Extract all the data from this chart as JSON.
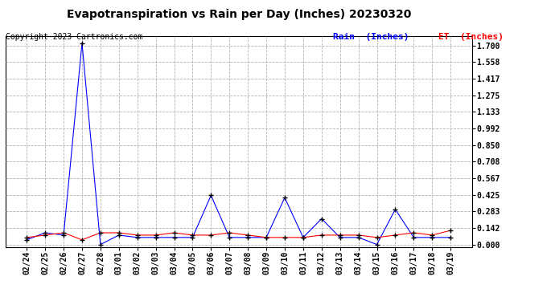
{
  "title": "Evapotranspiration vs Rain per Day (Inches) 20230320",
  "copyright": "Copyright 2023 Cartronics.com",
  "legend_rain": "Rain  (Inches)",
  "legend_et": "ET  (Inches)",
  "x_labels": [
    "02/24",
    "02/25",
    "02/26",
    "02/27",
    "02/28",
    "03/01",
    "03/02",
    "03/03",
    "03/04",
    "03/05",
    "03/06",
    "03/07",
    "03/08",
    "03/09",
    "03/10",
    "03/11",
    "03/12",
    "03/13",
    "03/14",
    "03/15",
    "03/16",
    "03/17",
    "03/18",
    "03/19"
  ],
  "rain_values": [
    0.04,
    0.1,
    0.08,
    1.72,
    0.0,
    0.08,
    0.06,
    0.06,
    0.06,
    0.06,
    0.42,
    0.06,
    0.06,
    0.06,
    0.4,
    0.06,
    0.22,
    0.06,
    0.06,
    0.0,
    0.3,
    0.06,
    0.06,
    0.06
  ],
  "et_values": [
    0.06,
    0.08,
    0.1,
    0.04,
    0.1,
    0.1,
    0.08,
    0.08,
    0.1,
    0.08,
    0.08,
    0.1,
    0.08,
    0.06,
    0.06,
    0.06,
    0.08,
    0.08,
    0.08,
    0.06,
    0.08,
    0.1,
    0.08,
    0.12
  ],
  "rain_color": "blue",
  "et_color": "red",
  "marker_color": "black",
  "yticks": [
    0.0,
    0.142,
    0.283,
    0.425,
    0.567,
    0.708,
    0.85,
    0.992,
    1.133,
    1.275,
    1.417,
    1.558,
    1.7
  ],
  "ylim": [
    -0.02,
    1.78
  ],
  "background_color": "#ffffff",
  "grid_color": "#aaaaaa",
  "title_fontsize": 10,
  "label_fontsize": 7,
  "copyright_fontsize": 7
}
